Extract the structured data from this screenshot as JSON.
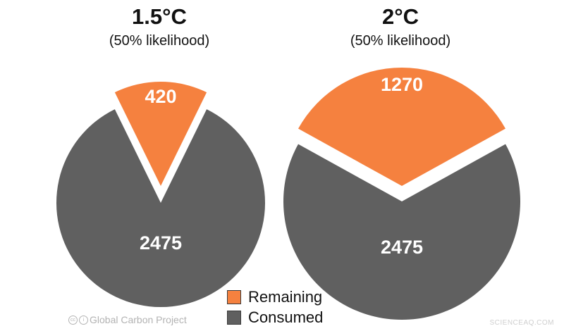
{
  "chart_data": [
    {
      "type": "pie",
      "title": "1.5°C",
      "subtitle": "(50% likelihood)",
      "slices": [
        {
          "label": "Remaining",
          "value": 420
        },
        {
          "label": "Consumed",
          "value": 2475
        }
      ]
    },
    {
      "type": "pie",
      "title": "2°C",
      "subtitle": "(50% likelihood)",
      "slices": [
        {
          "label": "Remaining",
          "value": 1270
        },
        {
          "label": "Consumed",
          "value": 2475
        }
      ]
    }
  ],
  "colors": {
    "remaining": "#f5813f",
    "consumed": "#606060"
  },
  "legend": {
    "remaining": "Remaining",
    "consumed": "Consumed"
  },
  "credit": {
    "icons": [
      "cc-icon",
      "by-icon"
    ],
    "text": "Global Carbon Project"
  },
  "watermark": "SCIENCEAQ.COM"
}
